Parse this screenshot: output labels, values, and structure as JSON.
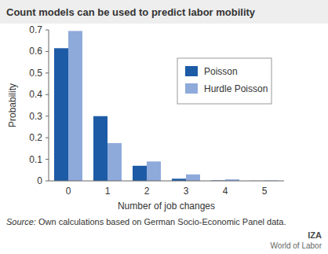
{
  "chart_data": {
    "type": "bar",
    "title": "Count models can be used to predict labor mobility",
    "x_label": "Number of job changes",
    "y_label": "Probability",
    "categories": [
      "0",
      "1",
      "2",
      "3",
      "4",
      "5"
    ],
    "series": [
      {
        "name": "Poisson",
        "color": "#1d5ba6",
        "values": [
          0.615,
          0.3,
          0.07,
          0.01,
          0.002,
          0.0005
        ]
      },
      {
        "name": "Hurdle Poisson",
        "color": "#8eaadb",
        "values": [
          0.695,
          0.175,
          0.09,
          0.03,
          0.007,
          0.002
        ]
      }
    ],
    "ylim": [
      0,
      0.7
    ],
    "yticks": [
      0,
      0.1,
      0.2,
      0.3,
      0.4,
      0.5,
      0.6,
      0.7
    ],
    "grid": false,
    "legend": "top-right",
    "source": "Source: Own calculations based on German Socio-Economic Panel data.",
    "annotations": [
      "IZA",
      "World of Labor"
    ]
  }
}
